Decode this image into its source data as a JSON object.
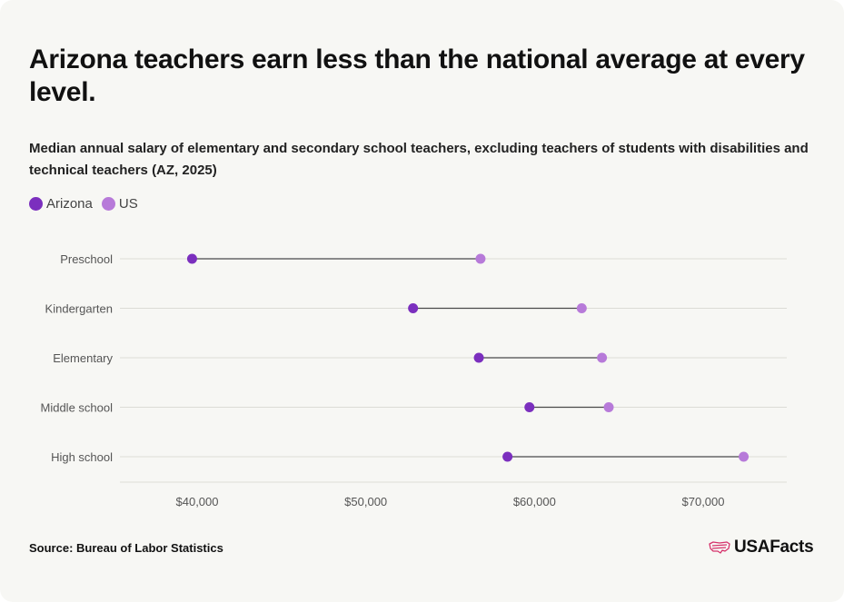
{
  "header": {
    "title": "Arizona teachers earn less than the national average at every level.",
    "subtitle": "Median annual salary of elementary and secondary school teachers, excluding teachers of students with disabilities and technical teachers (AZ, 2025)"
  },
  "legend": {
    "items": [
      {
        "label": "Arizona",
        "color": "#7b2fbe"
      },
      {
        "label": "US",
        "color": "#b77ad9"
      }
    ]
  },
  "footer": {
    "source": "Source: Bureau of Labor Statistics",
    "logo_text": "USAFacts",
    "logo_icon": "us-flag-map-icon"
  },
  "chart_data": {
    "type": "dumbbell",
    "title": "",
    "xlabel": "",
    "ylabel": "",
    "categories": [
      "Preschool",
      "Kindergarten",
      "Elementary",
      "Middle school",
      "High school"
    ],
    "series": [
      {
        "name": "Arizona",
        "color": "#7b2fbe",
        "values": [
          39700,
          52800,
          56700,
          59700,
          58400
        ]
      },
      {
        "name": "US",
        "color": "#b77ad9",
        "values": [
          56800,
          62800,
          64000,
          64400,
          72400
        ]
      }
    ],
    "x_ticks": [
      {
        "value": 40000,
        "label": "$40,000"
      },
      {
        "value": 50000,
        "label": "$50,000"
      },
      {
        "value": 60000,
        "label": "$60,000"
      },
      {
        "value": 70000,
        "label": "$70,000"
      }
    ],
    "xlim": [
      35000,
      75000
    ],
    "grid": true,
    "legend_position": "top-left"
  }
}
